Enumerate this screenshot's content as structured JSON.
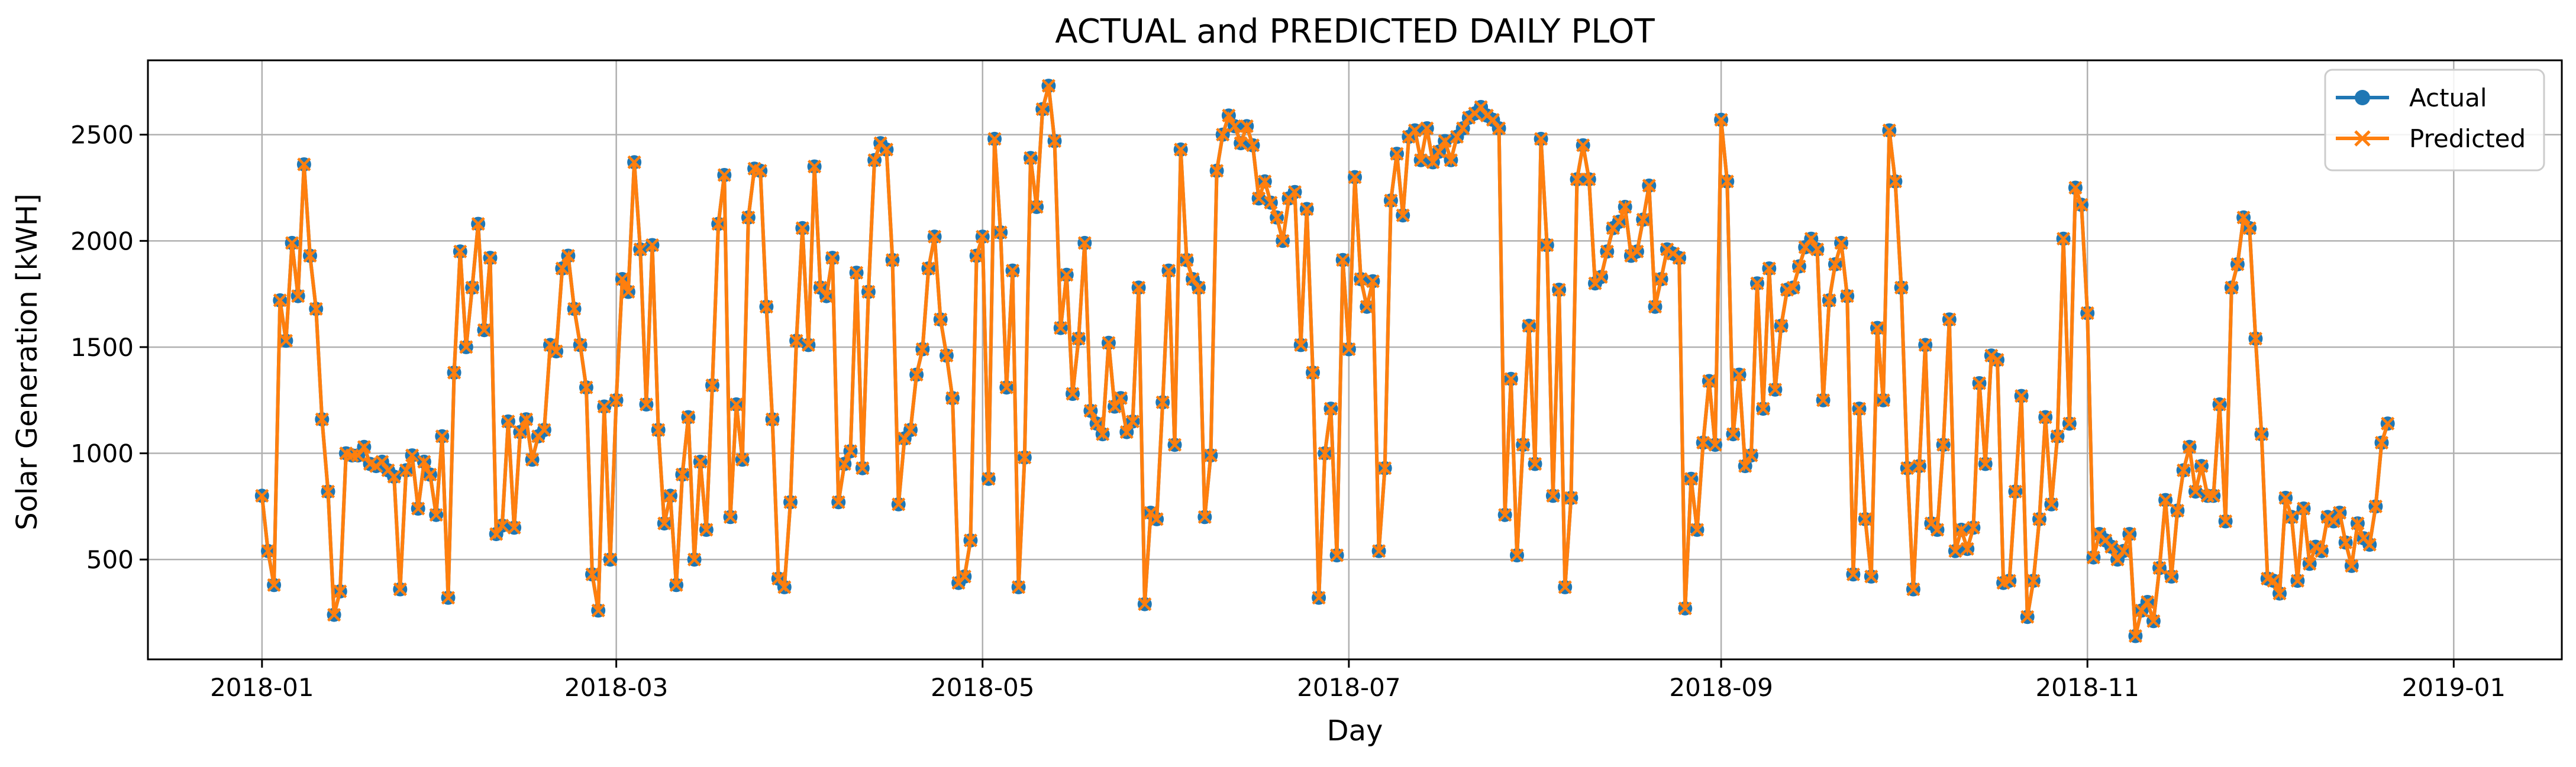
{
  "chart_data": {
    "type": "line",
    "title": "ACTUAL and PREDICTED DAILY PLOT",
    "xlabel": "Day",
    "ylabel": "Solar Generation [kWH]",
    "x_start": "2018-01-01",
    "x_ticks": [
      "2018-01",
      "2018-03",
      "2018-05",
      "2018-07",
      "2018-09",
      "2018-11",
      "2019-01"
    ],
    "x_tick_dates": [
      "2018-01-01",
      "2018-03-01",
      "2018-05-01",
      "2018-07-01",
      "2018-09-01",
      "2018-11-01",
      "2019-01-01"
    ],
    "xlim": [
      "2017-12-13",
      "2019-01-19"
    ],
    "y_ticks": [
      500,
      1000,
      1500,
      2000,
      2500
    ],
    "ylim": [
      30,
      2850
    ],
    "grid": true,
    "legend_position": "top-right",
    "series": [
      {
        "name": "Actual",
        "color": "#1f77b4",
        "marker": "circle"
      },
      {
        "name": "Predicted",
        "color": "#ff7f0e",
        "marker": "x"
      }
    ],
    "values": [
      800,
      540,
      380,
      1720,
      1530,
      1990,
      1740,
      2360,
      1930,
      1680,
      1160,
      820,
      240,
      350,
      1000,
      990,
      990,
      1030,
      950,
      940,
      960,
      920,
      890,
      360,
      920,
      990,
      740,
      960,
      900,
      710,
      1080,
      320,
      1380,
      1950,
      1500,
      1780,
      2080,
      1580,
      1920,
      620,
      660,
      1150,
      650,
      1100,
      1160,
      970,
      1080,
      1110,
      1510,
      1480,
      1870,
      1930,
      1680,
      1510,
      1310,
      430,
      260,
      1220,
      500,
      1250,
      1820,
      1760,
      2370,
      1960,
      1230,
      1980,
      1110,
      670,
      800,
      380,
      900,
      1170,
      500,
      960,
      640,
      1320,
      2080,
      2310,
      700,
      1230,
      970,
      2110,
      2340,
      2330,
      1690,
      1160,
      410,
      370,
      770,
      1530,
      2060,
      1510,
      2350,
      1780,
      1740,
      1920,
      770,
      950,
      1010,
      1850,
      930,
      1760,
      2380,
      2460,
      2430,
      1910,
      760,
      1070,
      1110,
      1370,
      1490,
      1870,
      2020,
      1630,
      1460,
      1260,
      390,
      420,
      590,
      1930,
      2020,
      880,
      2480,
      2040,
      1310,
      1860,
      370,
      980,
      2390,
      2160,
      2620,
      2730,
      2470,
      1590,
      1840,
      1280,
      1540,
      1990,
      1200,
      1140,
      1090,
      1520,
      1220,
      1260,
      1100,
      1150,
      1780,
      290,
      720,
      690,
      1240,
      1860,
      1040,
      2430,
      1910,
      1820,
      1780,
      700,
      990,
      2330,
      2500,
      2590,
      2540,
      2460,
      2540,
      2450,
      2200,
      2280,
      2180,
      2110,
      2000,
      2200,
      2230,
      1510,
      2150,
      1380,
      320,
      1000,
      1210,
      520,
      1910,
      1490,
      2300,
      1820,
      1690,
      1810,
      540,
      930,
      2190,
      2410,
      2120,
      2490,
      2520,
      2380,
      2530,
      2370,
      2420,
      2470,
      2380,
      2490,
      2530,
      2580,
      2600,
      2630,
      2590,
      2570,
      2530,
      710,
      1350,
      520,
      1040,
      1600,
      950,
      2480,
      1980,
      800,
      1770,
      370,
      790,
      2290,
      2450,
      2290,
      1800,
      1830,
      1950,
      2060,
      2090,
      2160,
      1930,
      1950,
      2100,
      2260,
      1690,
      1820,
      1960,
      1940,
      1920,
      270,
      880,
      640,
      1050,
      1340,
      1040,
      2570,
      2280,
      1090,
      1370,
      940,
      990,
      1800,
      1210,
      1870,
      1300,
      1600,
      1770,
      1780,
      1880,
      1970,
      2010,
      1960,
      1250,
      1720,
      1890,
      1990,
      1740,
      430,
      1210,
      690,
      420,
      1590,
      1250,
      2520,
      2280,
      1780,
      930,
      360,
      940,
      1510,
      670,
      640,
      1040,
      1630,
      540,
      640,
      550,
      650,
      1330,
      950,
      1460,
      1440,
      390,
      400,
      820,
      1270,
      230,
      400,
      690,
      1170,
      760,
      1080,
      2010,
      1140,
      2250,
      2170,
      1660,
      510,
      620,
      590,
      560,
      500,
      540,
      620,
      140,
      260,
      300,
      210,
      460,
      780,
      420,
      730,
      920,
      1030,
      820,
      940,
      800,
      800,
      1230,
      680,
      1780,
      1890,
      2110,
      2060,
      1540,
      1090,
      410,
      400,
      340,
      790,
      700,
      400,
      740,
      480,
      560,
      540,
      700,
      680,
      720,
      580,
      470,
      670,
      600,
      570,
      750,
      1050,
      1140
    ]
  }
}
